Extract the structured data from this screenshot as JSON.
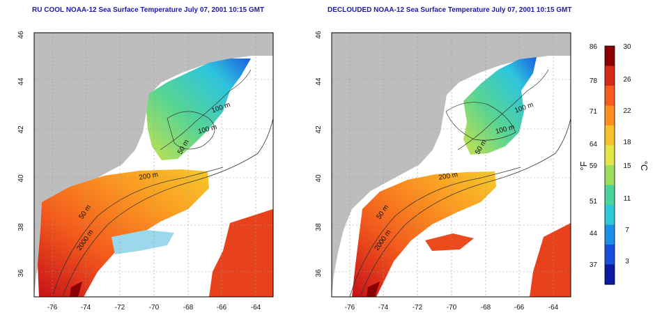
{
  "left_panel": {
    "title": "RU COOL NOAA-12 Sea Surface Temperature July 07, 2001 10:15 GMT",
    "lat_ticks": [
      "46",
      "44",
      "42",
      "40",
      "38",
      "36"
    ],
    "lon_ticks": [
      "-76",
      "-74",
      "-72",
      "-70",
      "-68",
      "-66",
      "-64"
    ],
    "contour_labels": [
      "100 m",
      "100 m",
      "50 m",
      "200 m",
      "50 m",
      "2000 m"
    ]
  },
  "right_panel": {
    "title": "DECLOUDED NOAA-12 Sea Surface Temperature July 07, 2001 10:15 GMT",
    "lat_ticks": [
      "46",
      "44",
      "42",
      "40",
      "38",
      "36"
    ],
    "lon_ticks": [
      "-76",
      "-74",
      "-72",
      "-70",
      "-68",
      "-66",
      "-64"
    ],
    "contour_labels": [
      "100 m",
      "100 m",
      "50 m",
      "200 m",
      "50 m",
      "2000 m"
    ]
  },
  "colorbar": {
    "fahrenheit_ticks": [
      "86",
      "78",
      "71",
      "64",
      "59",
      "51",
      "44",
      "37"
    ],
    "celsius_ticks": [
      "30",
      "26",
      "22",
      "18",
      "15",
      "11",
      "7",
      "3"
    ],
    "fahrenheit_unit": "°F",
    "celsius_unit": "°C",
    "colors": [
      "#8b0000",
      "#d42a1a",
      "#f55a1e",
      "#fb8f1f",
      "#f6c12a",
      "#e3e64a",
      "#9bde5d",
      "#4ad39a",
      "#2fc7d6",
      "#1b8fe3",
      "#1a4fd8",
      "#0c1aa0"
    ]
  },
  "colors": {
    "land": "#bdbdbd",
    "cloud": "#ffffff",
    "title": "#1a1aa8"
  }
}
